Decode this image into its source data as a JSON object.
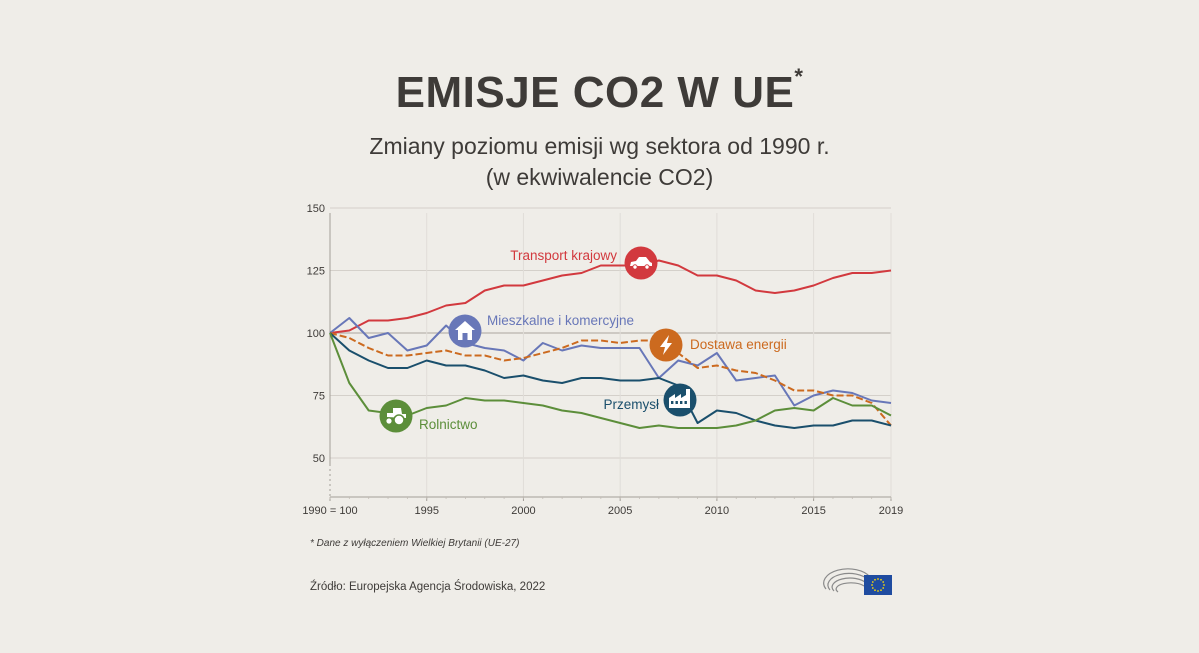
{
  "title_main": "EMISJE CO2 W UE",
  "title_asterisk": "*",
  "subtitle_line1": "Zmiany poziomu emisji wg sektora od 1990 r.",
  "subtitle_line2": "(w ekwiwalencie CO2)",
  "footnote": "* Dane z wyłączeniem Wielkiej Brytanii (UE-27)",
  "source": "Źródło: Europejska Agencja Środowiska, 2022",
  "chart_data": {
    "type": "line",
    "x": [
      1990,
      1991,
      1992,
      1993,
      1994,
      1995,
      1996,
      1997,
      1998,
      1999,
      2000,
      2001,
      2002,
      2003,
      2004,
      2005,
      2006,
      2007,
      2008,
      2009,
      2010,
      2011,
      2012,
      2013,
      2014,
      2015,
      2016,
      2017,
      2018,
      2019
    ],
    "xlim": [
      1990,
      2019
    ],
    "ylim": [
      40,
      150
    ],
    "yticks": [
      50,
      75,
      100,
      125,
      150
    ],
    "xticks": [
      {
        "value": 1990,
        "label": "1990 = 100"
      },
      {
        "value": 1995,
        "label": "1995"
      },
      {
        "value": 2000,
        "label": "2000"
      },
      {
        "value": 2005,
        "label": "2005"
      },
      {
        "value": 2010,
        "label": "2010"
      },
      {
        "value": 2015,
        "label": "2015"
      },
      {
        "value": 2019,
        "label": "2019"
      }
    ],
    "grid": true,
    "series": [
      {
        "name": "Transport krajowy",
        "icon": "car-icon",
        "color": "#d2393e",
        "dash": false,
        "values": [
          100,
          101,
          105,
          105,
          106,
          108,
          111,
          112,
          117,
          119,
          119,
          121,
          123,
          124,
          127,
          127,
          127,
          129,
          127,
          123,
          123,
          121,
          117,
          116,
          117,
          119,
          122,
          124,
          124,
          125
        ]
      },
      {
        "name": "Mieszkalne i komercyjne",
        "icon": "house-icon",
        "color": "#6877b8",
        "dash": false,
        "values": [
          100,
          106,
          98,
          100,
          93,
          95,
          103,
          96,
          94,
          93,
          89,
          96,
          93,
          95,
          94,
          94,
          94,
          82,
          89,
          87,
          92,
          81,
          82,
          83,
          71,
          75,
          77,
          76,
          73,
          72
        ]
      },
      {
        "name": "Dostawa energii",
        "icon": "lightning-icon",
        "color": "#cc6a1f",
        "dash": true,
        "values": [
          100,
          98,
          94,
          91,
          91,
          92,
          93,
          91,
          91,
          89,
          90,
          92,
          94,
          97,
          97,
          96,
          97,
          97,
          92,
          86,
          87,
          85,
          84,
          81,
          77,
          77,
          75,
          75,
          72,
          63
        ]
      },
      {
        "name": "Przemysł",
        "icon": "factory-icon",
        "color": "#1a4f6c",
        "dash": false,
        "values": [
          100,
          93,
          89,
          86,
          86,
          89,
          87,
          87,
          85,
          82,
          83,
          81,
          80,
          82,
          82,
          81,
          81,
          82,
          79,
          64,
          69,
          68,
          65,
          63,
          62,
          63,
          63,
          65,
          65,
          63
        ]
      },
      {
        "name": "Rolnictwo",
        "icon": "tractor-icon",
        "color": "#5c8e3a",
        "dash": false,
        "values": [
          100,
          80,
          69,
          68,
          67,
          70,
          71,
          74,
          73,
          73,
          72,
          71,
          69,
          68,
          66,
          64,
          62,
          63,
          62,
          62,
          62,
          63,
          65,
          69,
          70,
          69,
          74,
          71,
          71,
          67
        ]
      }
    ]
  },
  "logo": {
    "name": "european-parliament-logo",
    "flag_color": "#1f4ca0",
    "star_color": "#f2d40c"
  }
}
